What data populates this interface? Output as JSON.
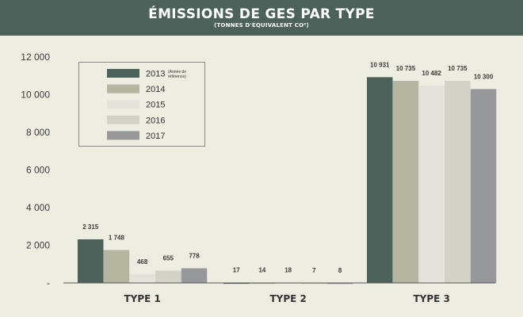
{
  "header": {
    "title": "ÉMISSIONS DE GES PAR TYPE",
    "subtitle": "(TONNES D'ÉQUIVALENT CO²)"
  },
  "colors": {
    "header_bg": "#4b615a",
    "background": "#eeede2",
    "series": [
      "#4b615a",
      "#b5b5a0",
      "#e3e3dc",
      "#d3d2c6",
      "#97989a"
    ]
  },
  "chart_data": {
    "type": "bar",
    "categories": [
      "TYPE 1",
      "TYPE 2",
      "TYPE 3"
    ],
    "y_ticks": [
      "-",
      "2 000",
      "4 000",
      "6 000",
      "8 000",
      "10 000",
      "12 000"
    ],
    "ylim": [
      0,
      12000
    ],
    "grid": false,
    "legend_position": "top-left",
    "series": [
      {
        "name": "2013",
        "note": "(Année de référence)",
        "values": [
          2315,
          17,
          10931
        ],
        "labels": [
          "2 315",
          "17",
          "10 931"
        ]
      },
      {
        "name": "2014",
        "values": [
          1748,
          14,
          10735
        ],
        "labels": [
          "1 748",
          "14",
          "10 735"
        ]
      },
      {
        "name": "2015",
        "values": [
          468,
          18,
          10482
        ],
        "labels": [
          "468",
          "18",
          "10 482"
        ]
      },
      {
        "name": "2016",
        "values": [
          655,
          7,
          10735
        ],
        "labels": [
          "655",
          "7",
          "10 735"
        ]
      },
      {
        "name": "2017",
        "values": [
          778,
          8,
          10300
        ],
        "labels": [
          "778",
          "8",
          "10 300"
        ]
      }
    ]
  }
}
